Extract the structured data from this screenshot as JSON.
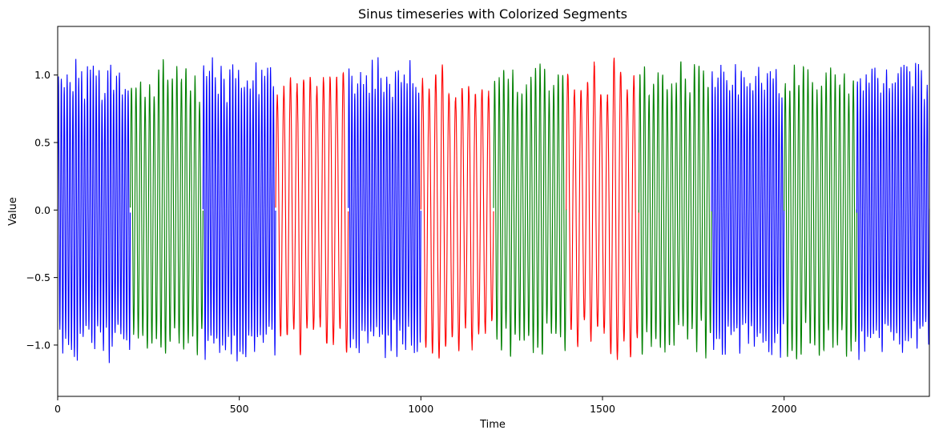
{
  "chart_data": {
    "type": "line",
    "title": "Sinus timeseries with Colorized Segments",
    "xlabel": "Time",
    "ylabel": "Value",
    "xlim": [
      0,
      2400
    ],
    "ylim": [
      -1.38,
      1.36
    ],
    "grid": false,
    "legend": "none",
    "x_ticks": [
      {
        "value": 0,
        "label": "0"
      },
      {
        "value": 500,
        "label": "500"
      },
      {
        "value": 1000,
        "label": "1000"
      },
      {
        "value": 1500,
        "label": "1500"
      },
      {
        "value": 2000,
        "label": "2000"
      }
    ],
    "y_ticks": [
      {
        "value": -1.0,
        "label": "−1.0"
      },
      {
        "value": -0.5,
        "label": "−0.5"
      },
      {
        "value": 0.0,
        "label": "0.0"
      },
      {
        "value": 0.5,
        "label": "0.5"
      },
      {
        "value": 1.0,
        "label": "1.0"
      }
    ],
    "segment_colors": {
      "blue": "#0000ff",
      "green": "#008000",
      "red": "#ff0000"
    },
    "segments": [
      {
        "start": 0,
        "end": 200,
        "color": "blue",
        "cycles_per_100": 12.5
      },
      {
        "start": 200,
        "end": 400,
        "color": "green",
        "cycles_per_100": 8.0
      },
      {
        "start": 400,
        "end": 600,
        "color": "blue",
        "cycles_per_100": 12.5
      },
      {
        "start": 600,
        "end": 800,
        "color": "red",
        "cycles_per_100": 5.5
      },
      {
        "start": 800,
        "end": 1000,
        "color": "blue",
        "cycles_per_100": 12.5
      },
      {
        "start": 1000,
        "end": 1200,
        "color": "red",
        "cycles_per_100": 5.5
      },
      {
        "start": 1200,
        "end": 1400,
        "color": "green",
        "cycles_per_100": 8.0
      },
      {
        "start": 1400,
        "end": 1600,
        "color": "red",
        "cycles_per_100": 5.5
      },
      {
        "start": 1600,
        "end": 1800,
        "color": "green",
        "cycles_per_100": 8.0
      },
      {
        "start": 1800,
        "end": 2000,
        "color": "blue",
        "cycles_per_100": 12.5
      },
      {
        "start": 2000,
        "end": 2200,
        "color": "green",
        "cycles_per_100": 8.0
      },
      {
        "start": 2200,
        "end": 2400,
        "color": "blue",
        "cycles_per_100": 12.5
      }
    ],
    "amplitude_range": [
      0.8,
      1.25
    ]
  }
}
